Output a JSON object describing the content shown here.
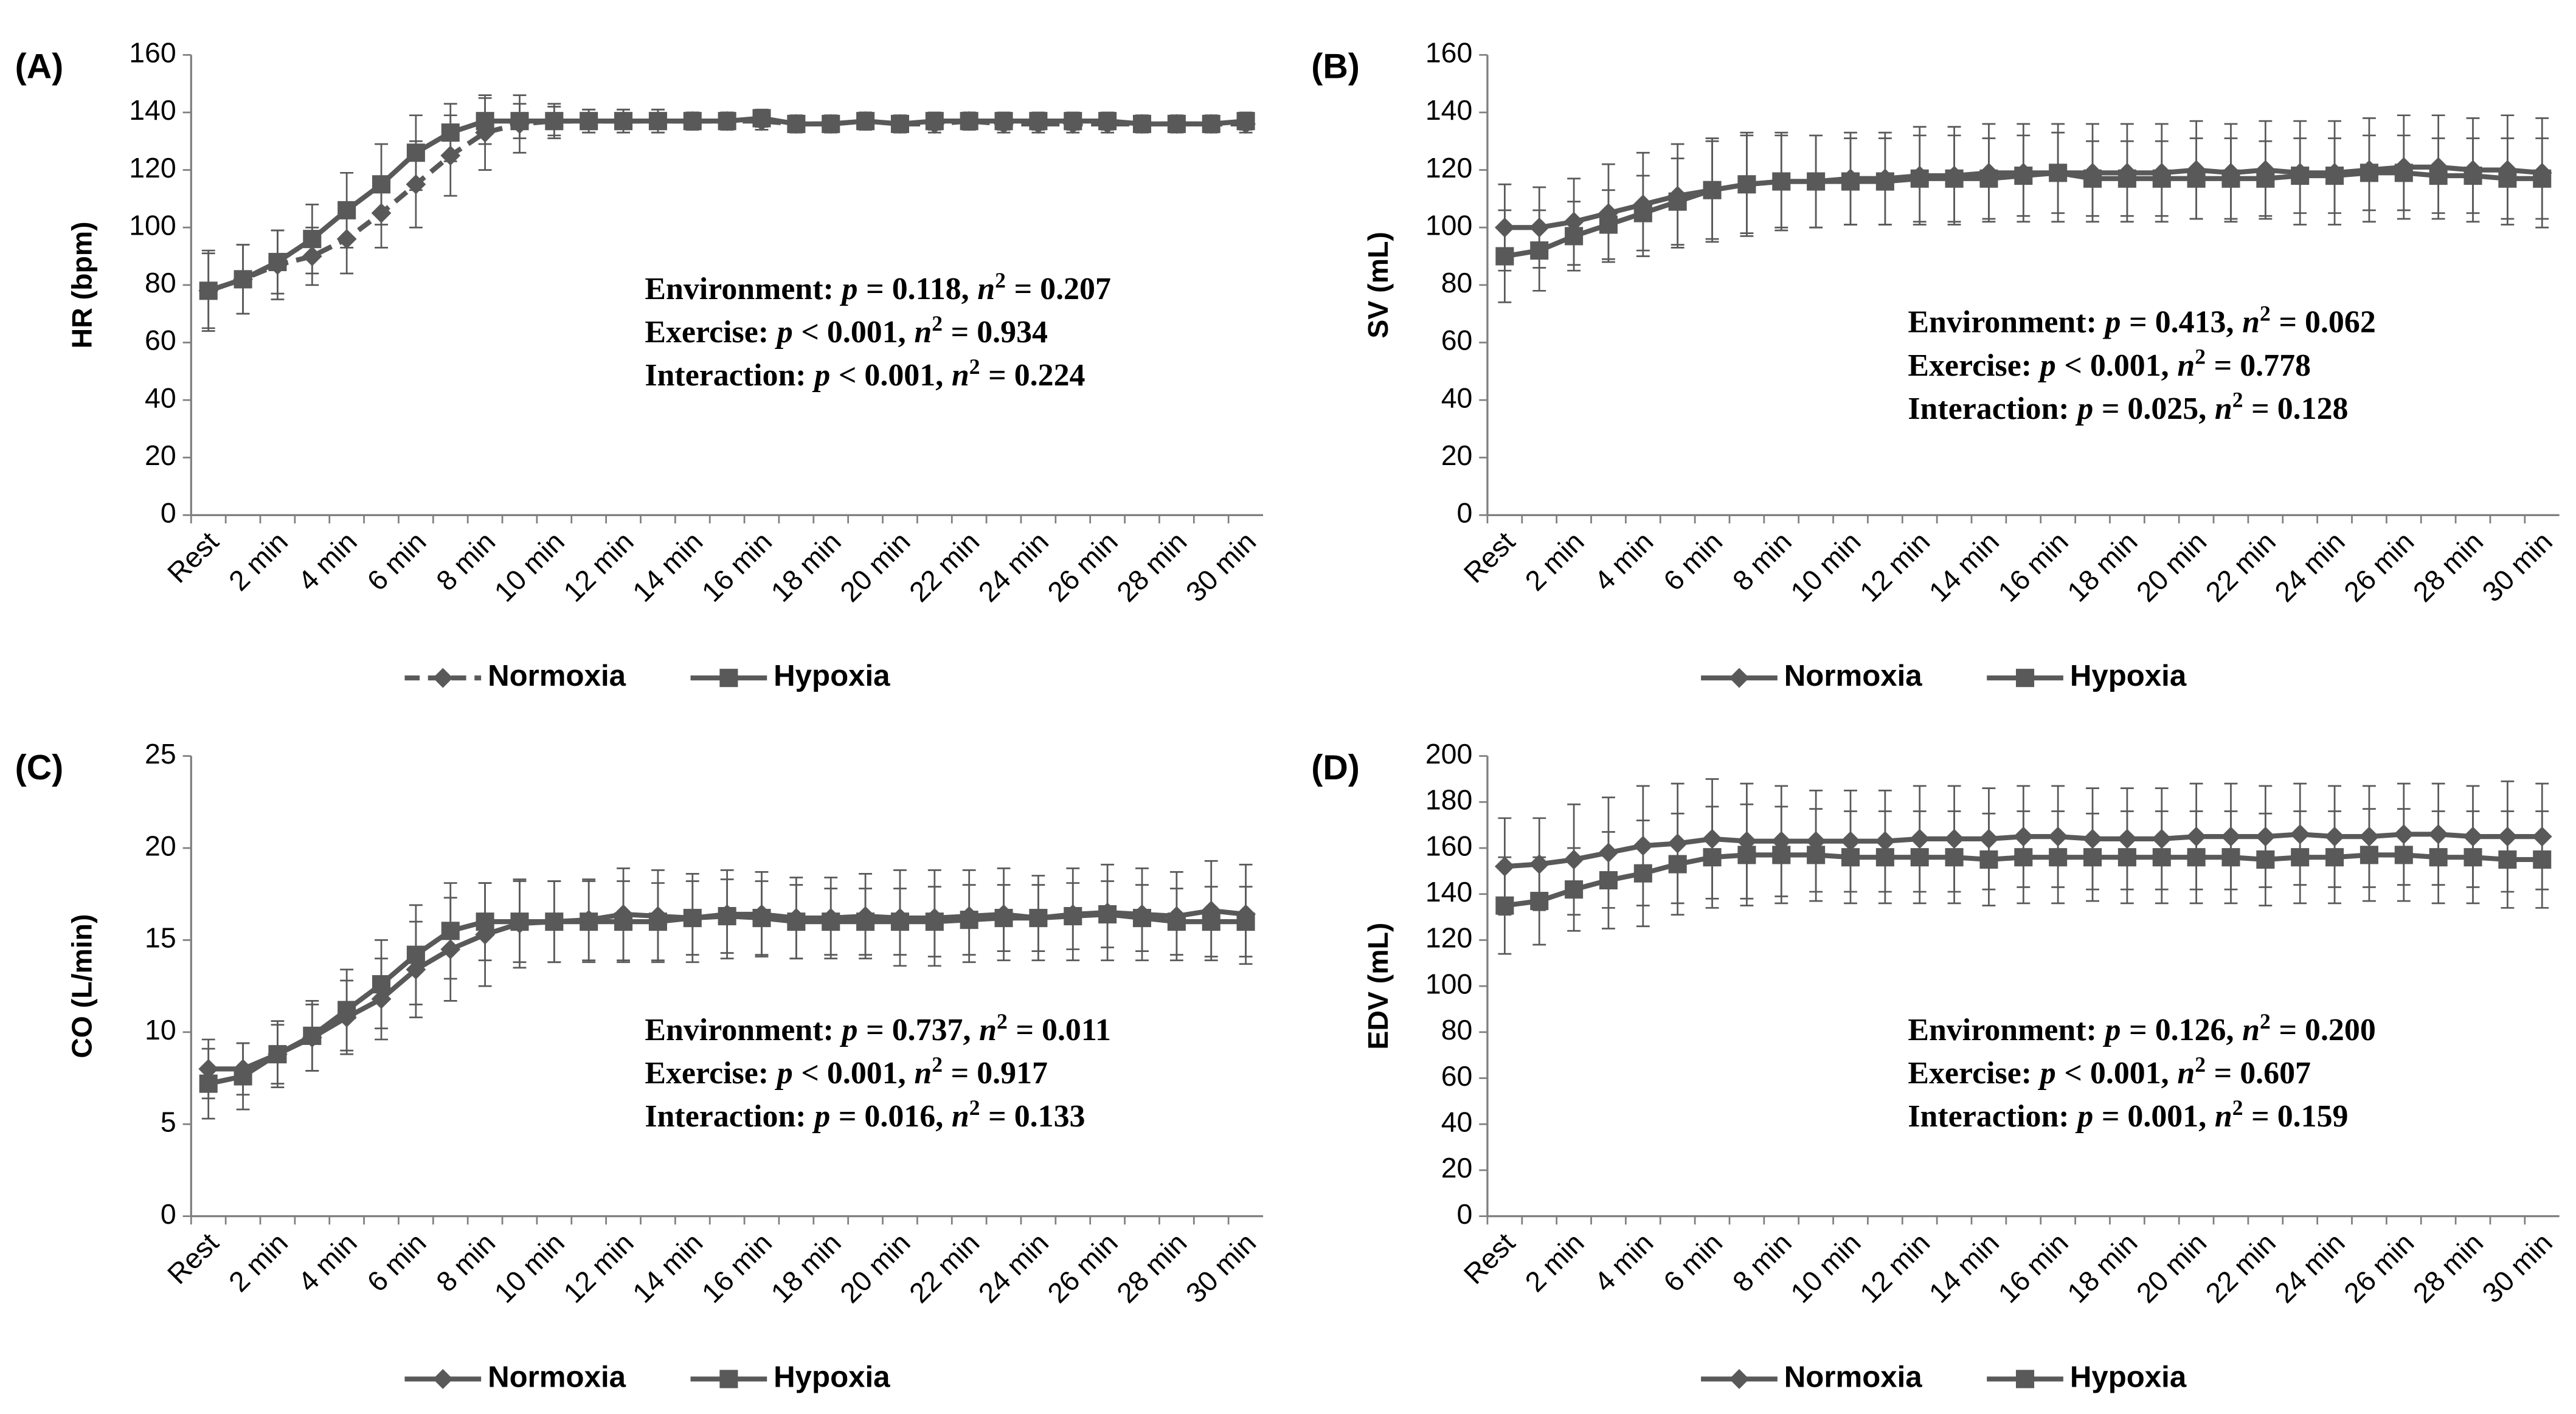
{
  "chart_data": [
    {
      "type": "line",
      "panel_label": "(A)",
      "y_label": "HR (bpm)",
      "legend": "bottom",
      "categories": [
        "Rest",
        null,
        "2 min",
        null,
        "4 min",
        null,
        "6 min",
        null,
        "8 min",
        null,
        "10 min",
        null,
        "12 min",
        null,
        "14 min",
        null,
        "16 min",
        null,
        "18 min",
        null,
        "20 min",
        null,
        "22 min",
        null,
        "24 min",
        null,
        "26 min",
        null,
        "28 min",
        null,
        "30 min"
      ],
      "ylim": [
        0,
        160
      ],
      "yticks": [
        0,
        20,
        40,
        60,
        80,
        100,
        120,
        140,
        160
      ],
      "series": [
        {
          "name": "Normoxia",
          "color": "#595959",
          "marker": "diamond",
          "line_style": "dashed",
          "values": [
            78,
            82,
            87,
            90,
            96,
            105,
            115,
            125,
            133,
            136,
            137,
            137,
            137,
            137,
            137,
            137,
            137,
            136,
            136,
            137,
            136,
            136,
            137,
            136,
            136,
            136,
            136,
            136,
            136,
            136,
            136
          ],
          "errors": [
            13,
            12,
            12,
            10,
            12,
            12,
            15,
            14,
            13,
            10,
            6,
            4,
            4,
            4,
            3,
            3,
            3,
            3,
            3,
            3,
            3,
            3,
            3,
            3,
            3,
            3,
            3,
            3,
            3,
            3,
            3
          ]
        },
        {
          "name": "Hypoxia",
          "color": "#595959",
          "marker": "square",
          "line_style": "solid",
          "values": [
            78,
            82,
            88,
            96,
            106,
            115,
            126,
            133,
            137,
            137,
            137,
            137,
            137,
            137,
            137,
            137,
            138,
            136,
            136,
            137,
            136,
            137,
            137,
            137,
            137,
            137,
            137,
            136,
            136,
            136,
            137
          ],
          "errors": [
            14,
            12,
            11,
            12,
            13,
            14,
            13,
            10,
            8,
            6,
            5,
            4,
            4,
            4,
            3,
            3,
            3,
            3,
            3,
            3,
            3,
            3,
            3,
            3,
            3,
            3,
            3,
            3,
            3,
            3,
            3
          ]
        }
      ],
      "annotations": [
        [
          "Environment:",
          "p",
          "= 0.118,",
          "n",
          "2",
          "= 0.207"
        ],
        [
          "Exercise:",
          "p",
          "< 0.001,",
          "n",
          "2",
          "= 0.934"
        ],
        [
          "Interaction:",
          "p",
          "< 0.001,",
          "n",
          "2",
          "= 0.224"
        ]
      ]
    },
    {
      "type": "line",
      "panel_label": "(B)",
      "y_label": "SV (mL)",
      "legend": "bottom",
      "categories": [
        "Rest",
        null,
        "2 min",
        null,
        "4 min",
        null,
        "6 min",
        null,
        "8 min",
        null,
        "10 min",
        null,
        "12 min",
        null,
        "14 min",
        null,
        "16 min",
        null,
        "18 min",
        null,
        "20 min",
        null,
        "22 min",
        null,
        "24 min",
        null,
        "26 min",
        null,
        "28 min",
        null,
        "30 min"
      ],
      "ylim": [
        0,
        160
      ],
      "yticks": [
        0,
        20,
        40,
        60,
        80,
        100,
        120,
        140,
        160
      ],
      "series": [
        {
          "name": "Normoxia",
          "color": "#595959",
          "marker": "diamond",
          "line_style": "solid",
          "values": [
            100,
            100,
            102,
            105,
            108,
            111,
            113,
            115,
            116,
            116,
            117,
            117,
            118,
            118,
            119,
            119,
            119,
            119,
            119,
            119,
            120,
            119,
            120,
            119,
            119,
            120,
            121,
            121,
            120,
            120,
            119
          ],
          "errors": [
            15,
            14,
            15,
            17,
            18,
            18,
            18,
            18,
            17,
            16,
            16,
            16,
            17,
            17,
            17,
            17,
            17,
            17,
            17,
            17,
            17,
            17,
            17,
            18,
            18,
            18,
            18,
            18,
            18,
            19,
            19
          ]
        },
        {
          "name": "Hypoxia",
          "color": "#595959",
          "marker": "square",
          "line_style": "solid",
          "values": [
            90,
            92,
            97,
            101,
            105,
            109,
            113,
            115,
            116,
            116,
            116,
            116,
            117,
            117,
            117,
            118,
            119,
            117,
            117,
            117,
            117,
            117,
            117,
            118,
            118,
            119,
            119,
            118,
            118,
            117,
            117
          ],
          "errors": [
            16,
            14,
            12,
            12,
            13,
            15,
            17,
            17,
            16,
            16,
            15,
            15,
            15,
            15,
            14,
            14,
            14,
            13,
            13,
            13,
            14,
            14,
            13,
            13,
            13,
            13,
            13,
            13,
            13,
            14,
            14
          ]
        }
      ],
      "annotations": [
        [
          "Environment:",
          "p",
          "= 0.413,",
          "n",
          "2",
          "= 0.062"
        ],
        [
          "Exercise:",
          "p",
          "< 0.001,",
          "n",
          "2",
          "= 0.778"
        ],
        [
          "Interaction:",
          "p",
          "= 0.025,",
          "n",
          "2",
          "= 0.128"
        ]
      ]
    },
    {
      "type": "line",
      "panel_label": "(C)",
      "y_label": "CO (L/min)",
      "legend": "bottom",
      "categories": [
        "Rest",
        null,
        "2 min",
        null,
        "4 min",
        null,
        "6 min",
        null,
        "8 min",
        null,
        "10 min",
        null,
        "12 min",
        null,
        "14 min",
        null,
        "16 min",
        null,
        "18 min",
        null,
        "20 min",
        null,
        "22 min",
        null,
        "24 min",
        null,
        "26 min",
        null,
        "28 min",
        null,
        "30 min"
      ],
      "ylim": [
        0,
        25
      ],
      "yticks": [
        0,
        5,
        10,
        15,
        20,
        25
      ],
      "series": [
        {
          "name": "Normoxia",
          "color": "#595959",
          "marker": "diamond",
          "line_style": "solid",
          "values": [
            8.0,
            8.0,
            8.8,
            9.7,
            10.8,
            11.8,
            13.4,
            14.5,
            15.3,
            15.9,
            16.0,
            16.1,
            16.4,
            16.3,
            16.2,
            16.4,
            16.4,
            16.2,
            16.2,
            16.3,
            16.2,
            16.2,
            16.3,
            16.4,
            16.2,
            16.4,
            16.5,
            16.4,
            16.3,
            16.6,
            16.4
          ],
          "errors": [
            1.6,
            1.4,
            1.8,
            1.8,
            2.0,
            2.2,
            2.6,
            2.8,
            2.8,
            2.4,
            2.2,
            2.2,
            2.5,
            2.5,
            2.4,
            2.4,
            2.3,
            2.2,
            2.2,
            2.3,
            2.6,
            2.6,
            2.5,
            2.5,
            2.3,
            2.5,
            2.6,
            2.5,
            2.4,
            2.7,
            2.7
          ]
        },
        {
          "name": "Hypoxia",
          "color": "#595959",
          "marker": "square",
          "line_style": "solid",
          "values": [
            7.2,
            7.6,
            8.8,
            9.8,
            11.2,
            12.6,
            14.2,
            15.5,
            16.0,
            16.0,
            16.0,
            16.0,
            16.0,
            16.0,
            16.2,
            16.3,
            16.2,
            16.0,
            16.0,
            16.0,
            16.0,
            16.0,
            16.1,
            16.2,
            16.2,
            16.3,
            16.4,
            16.2,
            16.0,
            16.0,
            16.0
          ],
          "errors": [
            1.9,
            1.8,
            1.6,
            1.9,
            2.2,
            2.4,
            2.7,
            2.6,
            2.1,
            2.2,
            2.2,
            2.2,
            2.2,
            2.1,
            2.0,
            2.0,
            2.0,
            2.0,
            1.8,
            1.8,
            1.8,
            1.9,
            1.9,
            1.8,
            1.8,
            1.8,
            1.8,
            1.8,
            1.8,
            1.9,
            1.9
          ]
        }
      ],
      "annotations": [
        [
          "Environment:",
          "p",
          "= 0.737,",
          "n",
          "2",
          "= 0.011"
        ],
        [
          "Exercise:",
          "p",
          "< 0.001,",
          "n",
          "2",
          "= 0.917"
        ],
        [
          "Interaction:",
          "p",
          "= 0.016,",
          "n",
          "2",
          "= 0.133"
        ]
      ]
    },
    {
      "type": "line",
      "panel_label": "(D)",
      "y_label": "EDV (mL)",
      "legend": "bottom",
      "categories": [
        "Rest",
        null,
        "2 min",
        null,
        "4 min",
        null,
        "6 min",
        null,
        "8 min",
        null,
        "10 min",
        null,
        "12 min",
        null,
        "14 min",
        null,
        "16 min",
        null,
        "18 min",
        null,
        "20 min",
        null,
        "22 min",
        null,
        "24 min",
        null,
        "26 min",
        null,
        "28 min",
        null,
        "30 min"
      ],
      "ylim": [
        0,
        200
      ],
      "yticks": [
        0,
        20,
        40,
        60,
        80,
        100,
        120,
        140,
        160,
        180,
        200
      ],
      "series": [
        {
          "name": "Normoxia",
          "color": "#595959",
          "marker": "diamond",
          "line_style": "solid",
          "values": [
            152,
            153,
            155,
            158,
            161,
            162,
            164,
            163,
            163,
            163,
            163,
            163,
            164,
            164,
            164,
            165,
            165,
            164,
            164,
            164,
            165,
            165,
            165,
            166,
            165,
            165,
            166,
            166,
            165,
            165,
            165
          ],
          "errors": [
            21,
            20,
            24,
            24,
            26,
            26,
            26,
            25,
            24,
            22,
            22,
            22,
            23,
            23,
            22,
            22,
            22,
            22,
            22,
            22,
            23,
            23,
            22,
            22,
            22,
            22,
            22,
            22,
            22,
            24,
            23
          ]
        },
        {
          "name": "Hypoxia",
          "color": "#595959",
          "marker": "square",
          "line_style": "solid",
          "values": [
            135,
            137,
            142,
            146,
            149,
            153,
            156,
            157,
            157,
            157,
            156,
            156,
            156,
            156,
            155,
            156,
            156,
            156,
            156,
            156,
            156,
            156,
            155,
            156,
            156,
            157,
            157,
            156,
            156,
            155,
            155
          ],
          "errors": [
            21,
            19,
            18,
            21,
            23,
            22,
            22,
            22,
            21,
            20,
            20,
            20,
            20,
            20,
            20,
            20,
            20,
            19,
            20,
            20,
            20,
            20,
            20,
            20,
            20,
            20,
            20,
            20,
            20,
            21,
            21
          ]
        }
      ],
      "annotations": [
        [
          "Environment:",
          "p",
          "= 0.126,",
          "n",
          "2",
          "= 0.200"
        ],
        [
          "Exercise:",
          "p",
          "< 0.001,",
          "n",
          "2",
          "= 0.607"
        ],
        [
          "Interaction:",
          "p",
          "= 0.001,",
          "n",
          "2",
          "= 0.159"
        ]
      ]
    }
  ]
}
